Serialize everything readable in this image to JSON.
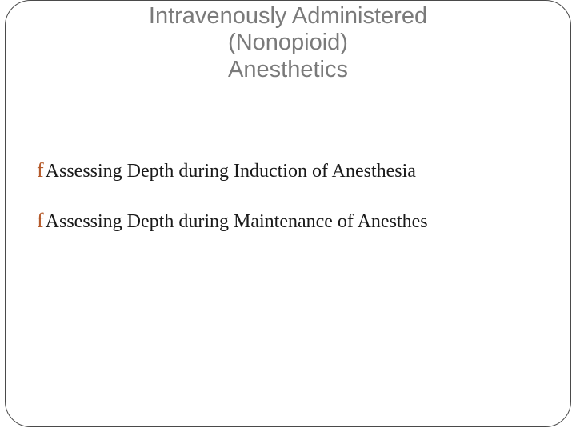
{
  "slide": {
    "title_line1": "Intravenously Administered",
    "title_line2": "(Nonopioid)",
    "title_line3": "Anesthetics",
    "bullets": [
      {
        "glyph": "f",
        "text": "Assessing Depth during Induction of Anesthesia"
      },
      {
        "glyph": "f",
        "text": "Assessing Depth during Maintenance of Anesthes"
      }
    ],
    "colors": {
      "title_color": "#7a7a7a",
      "bullet_glyph_color": "#b55a2a",
      "body_text_color": "#1a1a1a",
      "frame_border_color": "#4a4a4a",
      "background": "#ffffff"
    },
    "typography": {
      "title_fontsize": 29,
      "title_family": "Arial",
      "body_fontsize": 24,
      "body_family": "Georgia"
    },
    "frame": {
      "border_radius": 32,
      "border_width": 1
    }
  }
}
